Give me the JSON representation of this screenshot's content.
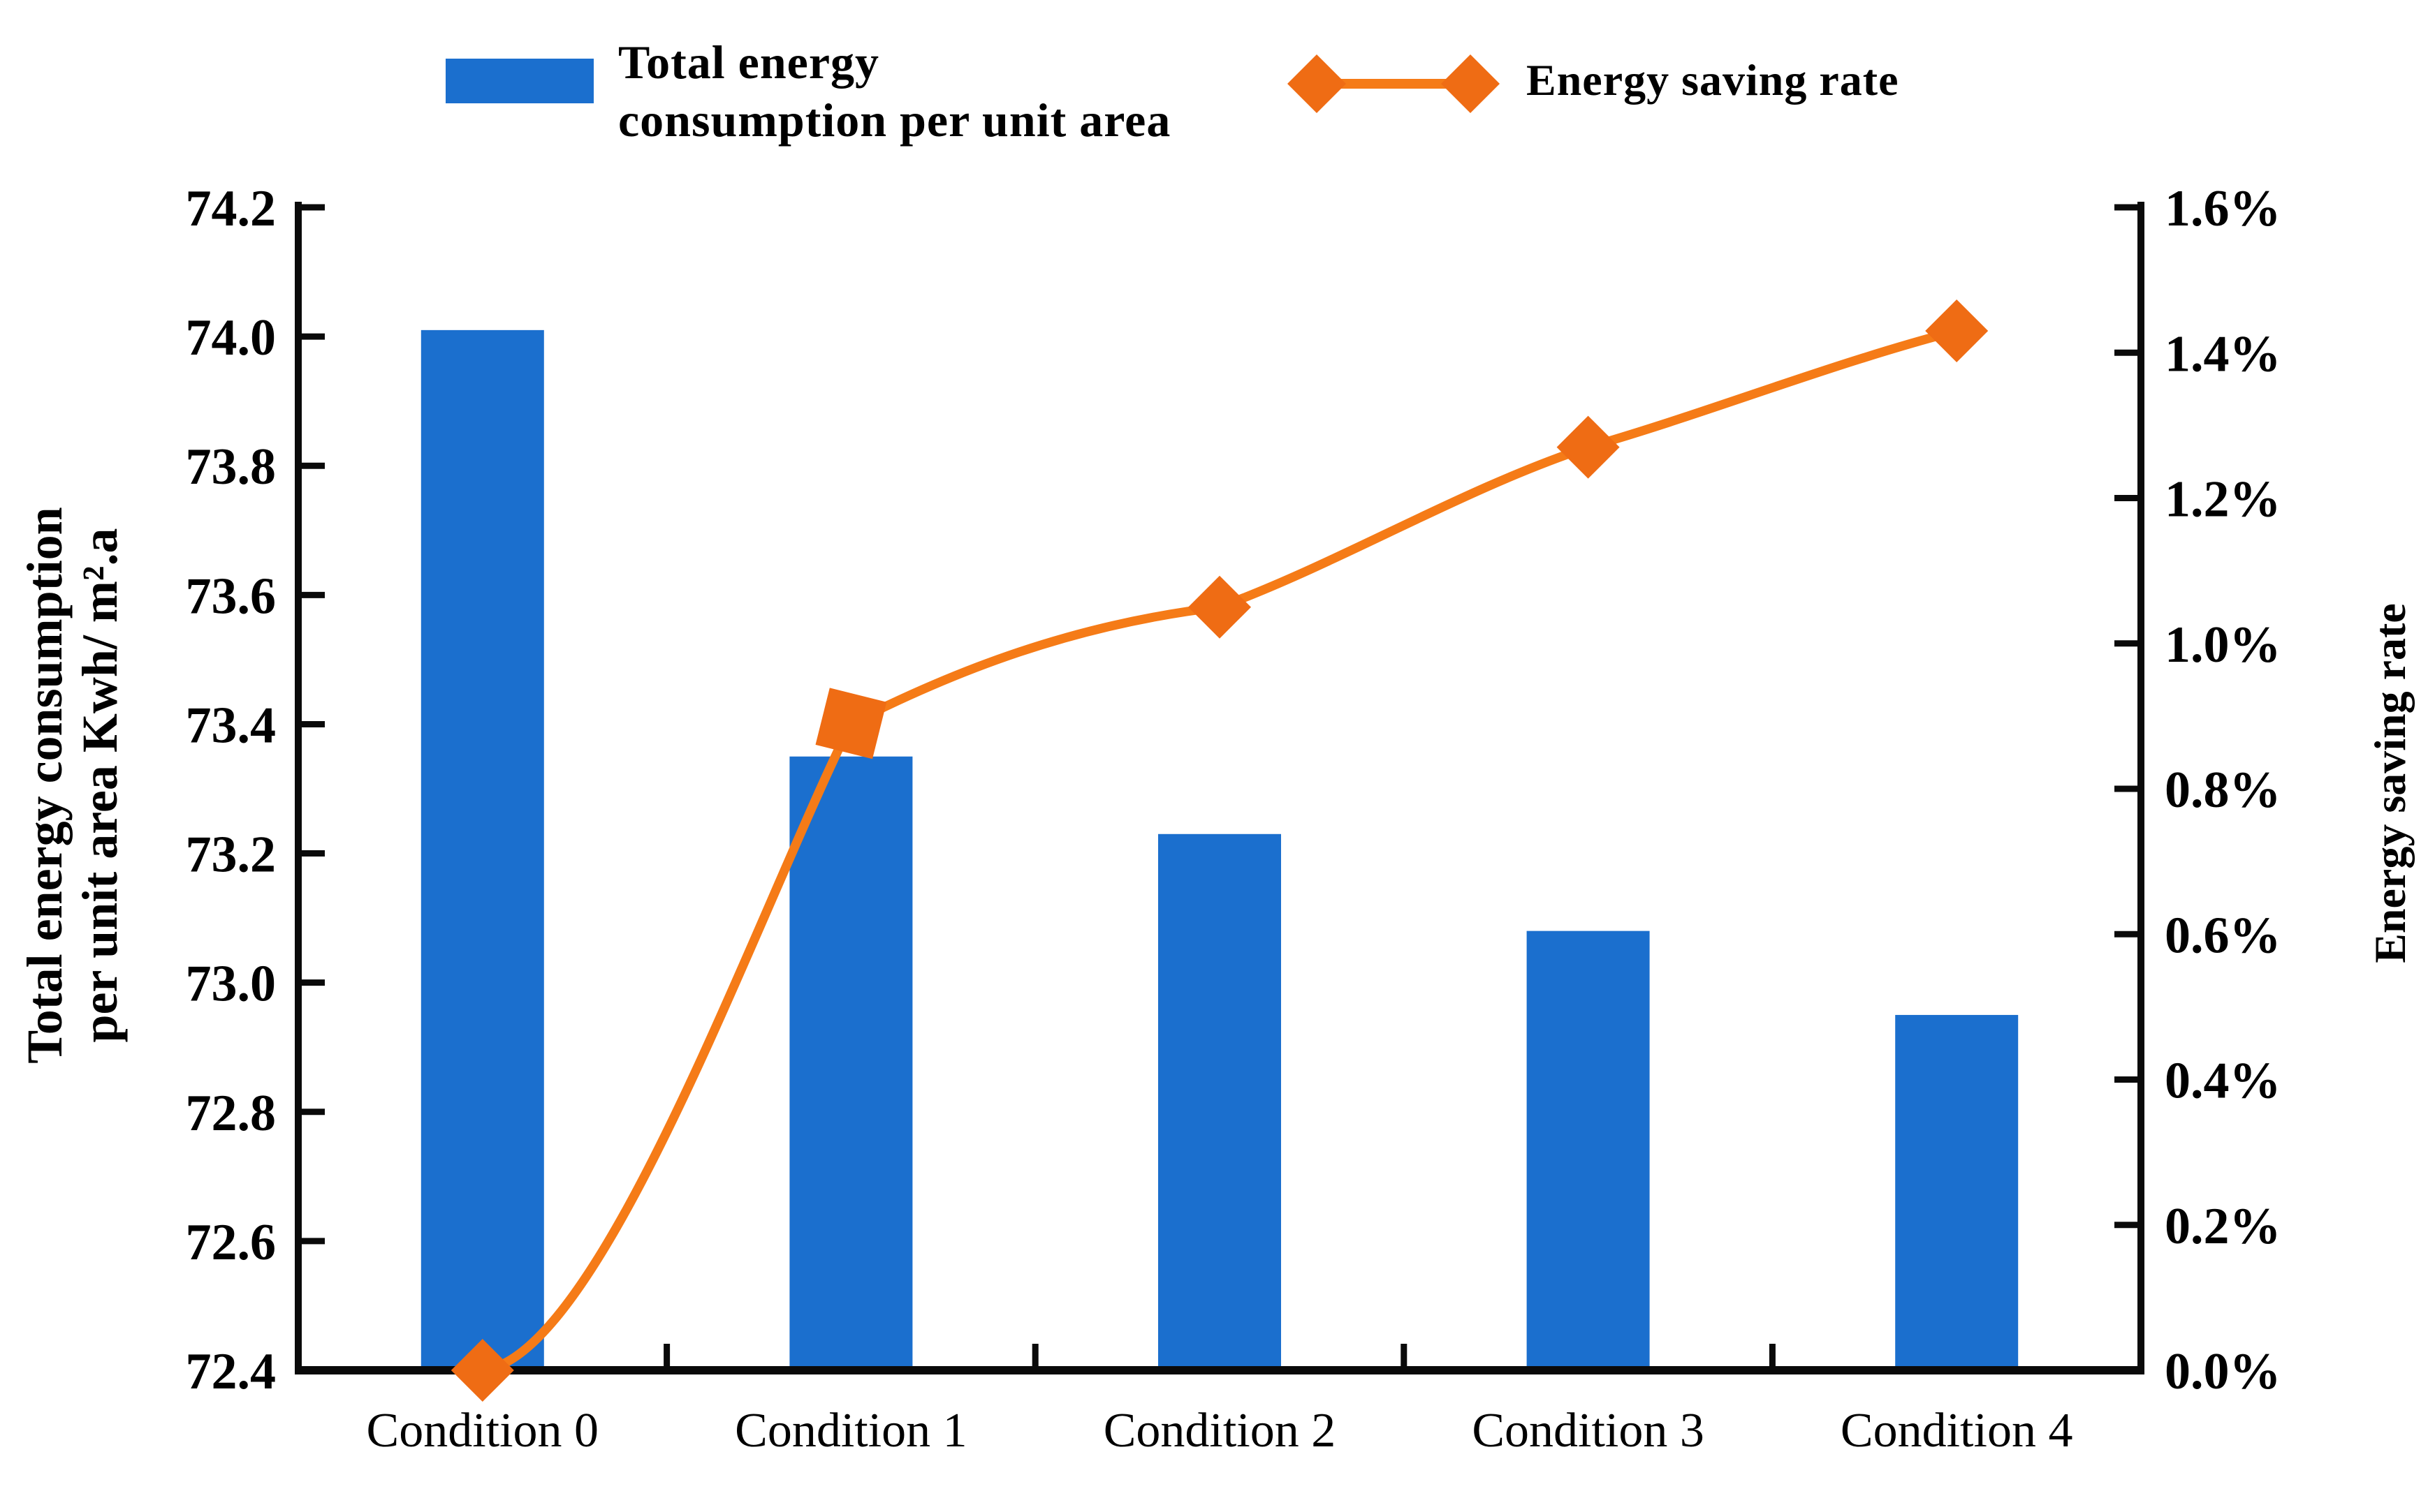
{
  "legend": {
    "bar_label_line1": "Total energy",
    "bar_label_line2": "consumption per unit area",
    "line_label": "Energy saving rate"
  },
  "axes": {
    "left_title_line1": "Total energy consumption",
    "left_title_line2": "per unit area Kwh/ m².a",
    "right_title": "Energy saving rate",
    "left_tick_labels": [
      "74.2",
      "74.0",
      "73.8",
      "73.6",
      "73.4",
      "73.2",
      "73.0",
      "72.8",
      "72.6",
      "72.4"
    ],
    "right_tick_labels": [
      "1.6%",
      "1.4%",
      "1.2%",
      "1.0%",
      "0.8%",
      "0.6%",
      "0.4%",
      "0.2%",
      "0.0%"
    ]
  },
  "colors": {
    "bar": "#1b6fce",
    "line": "#f57b17",
    "marker": "#ef6c14",
    "axis": "#0a0a0a",
    "text": "#000000"
  },
  "chart_data": {
    "type": "bar+line",
    "title": "",
    "categories": [
      "Condition 0",
      "Condition 1",
      "Condition 2",
      "Condition 3",
      "Condition 4"
    ],
    "series": [
      {
        "name": "Total energy consumption per unit area",
        "type": "bar",
        "axis": "left",
        "unit": "Kwh/m².a",
        "values": [
          74.01,
          73.35,
          73.23,
          73.08,
          72.95
        ]
      },
      {
        "name": "Energy saving rate",
        "type": "line",
        "axis": "right",
        "unit": "%",
        "values": [
          0.0,
          0.89,
          1.05,
          1.27,
          1.43
        ]
      }
    ],
    "left_axis": {
      "label": "Total energy consumption per unit area Kwh/m².a",
      "min": 72.4,
      "max": 74.2,
      "step": 0.2
    },
    "right_axis": {
      "label": "Energy saving rate",
      "min": 0.0,
      "max": 1.6,
      "step": 0.2
    },
    "grid": false,
    "legend_position": "top"
  }
}
